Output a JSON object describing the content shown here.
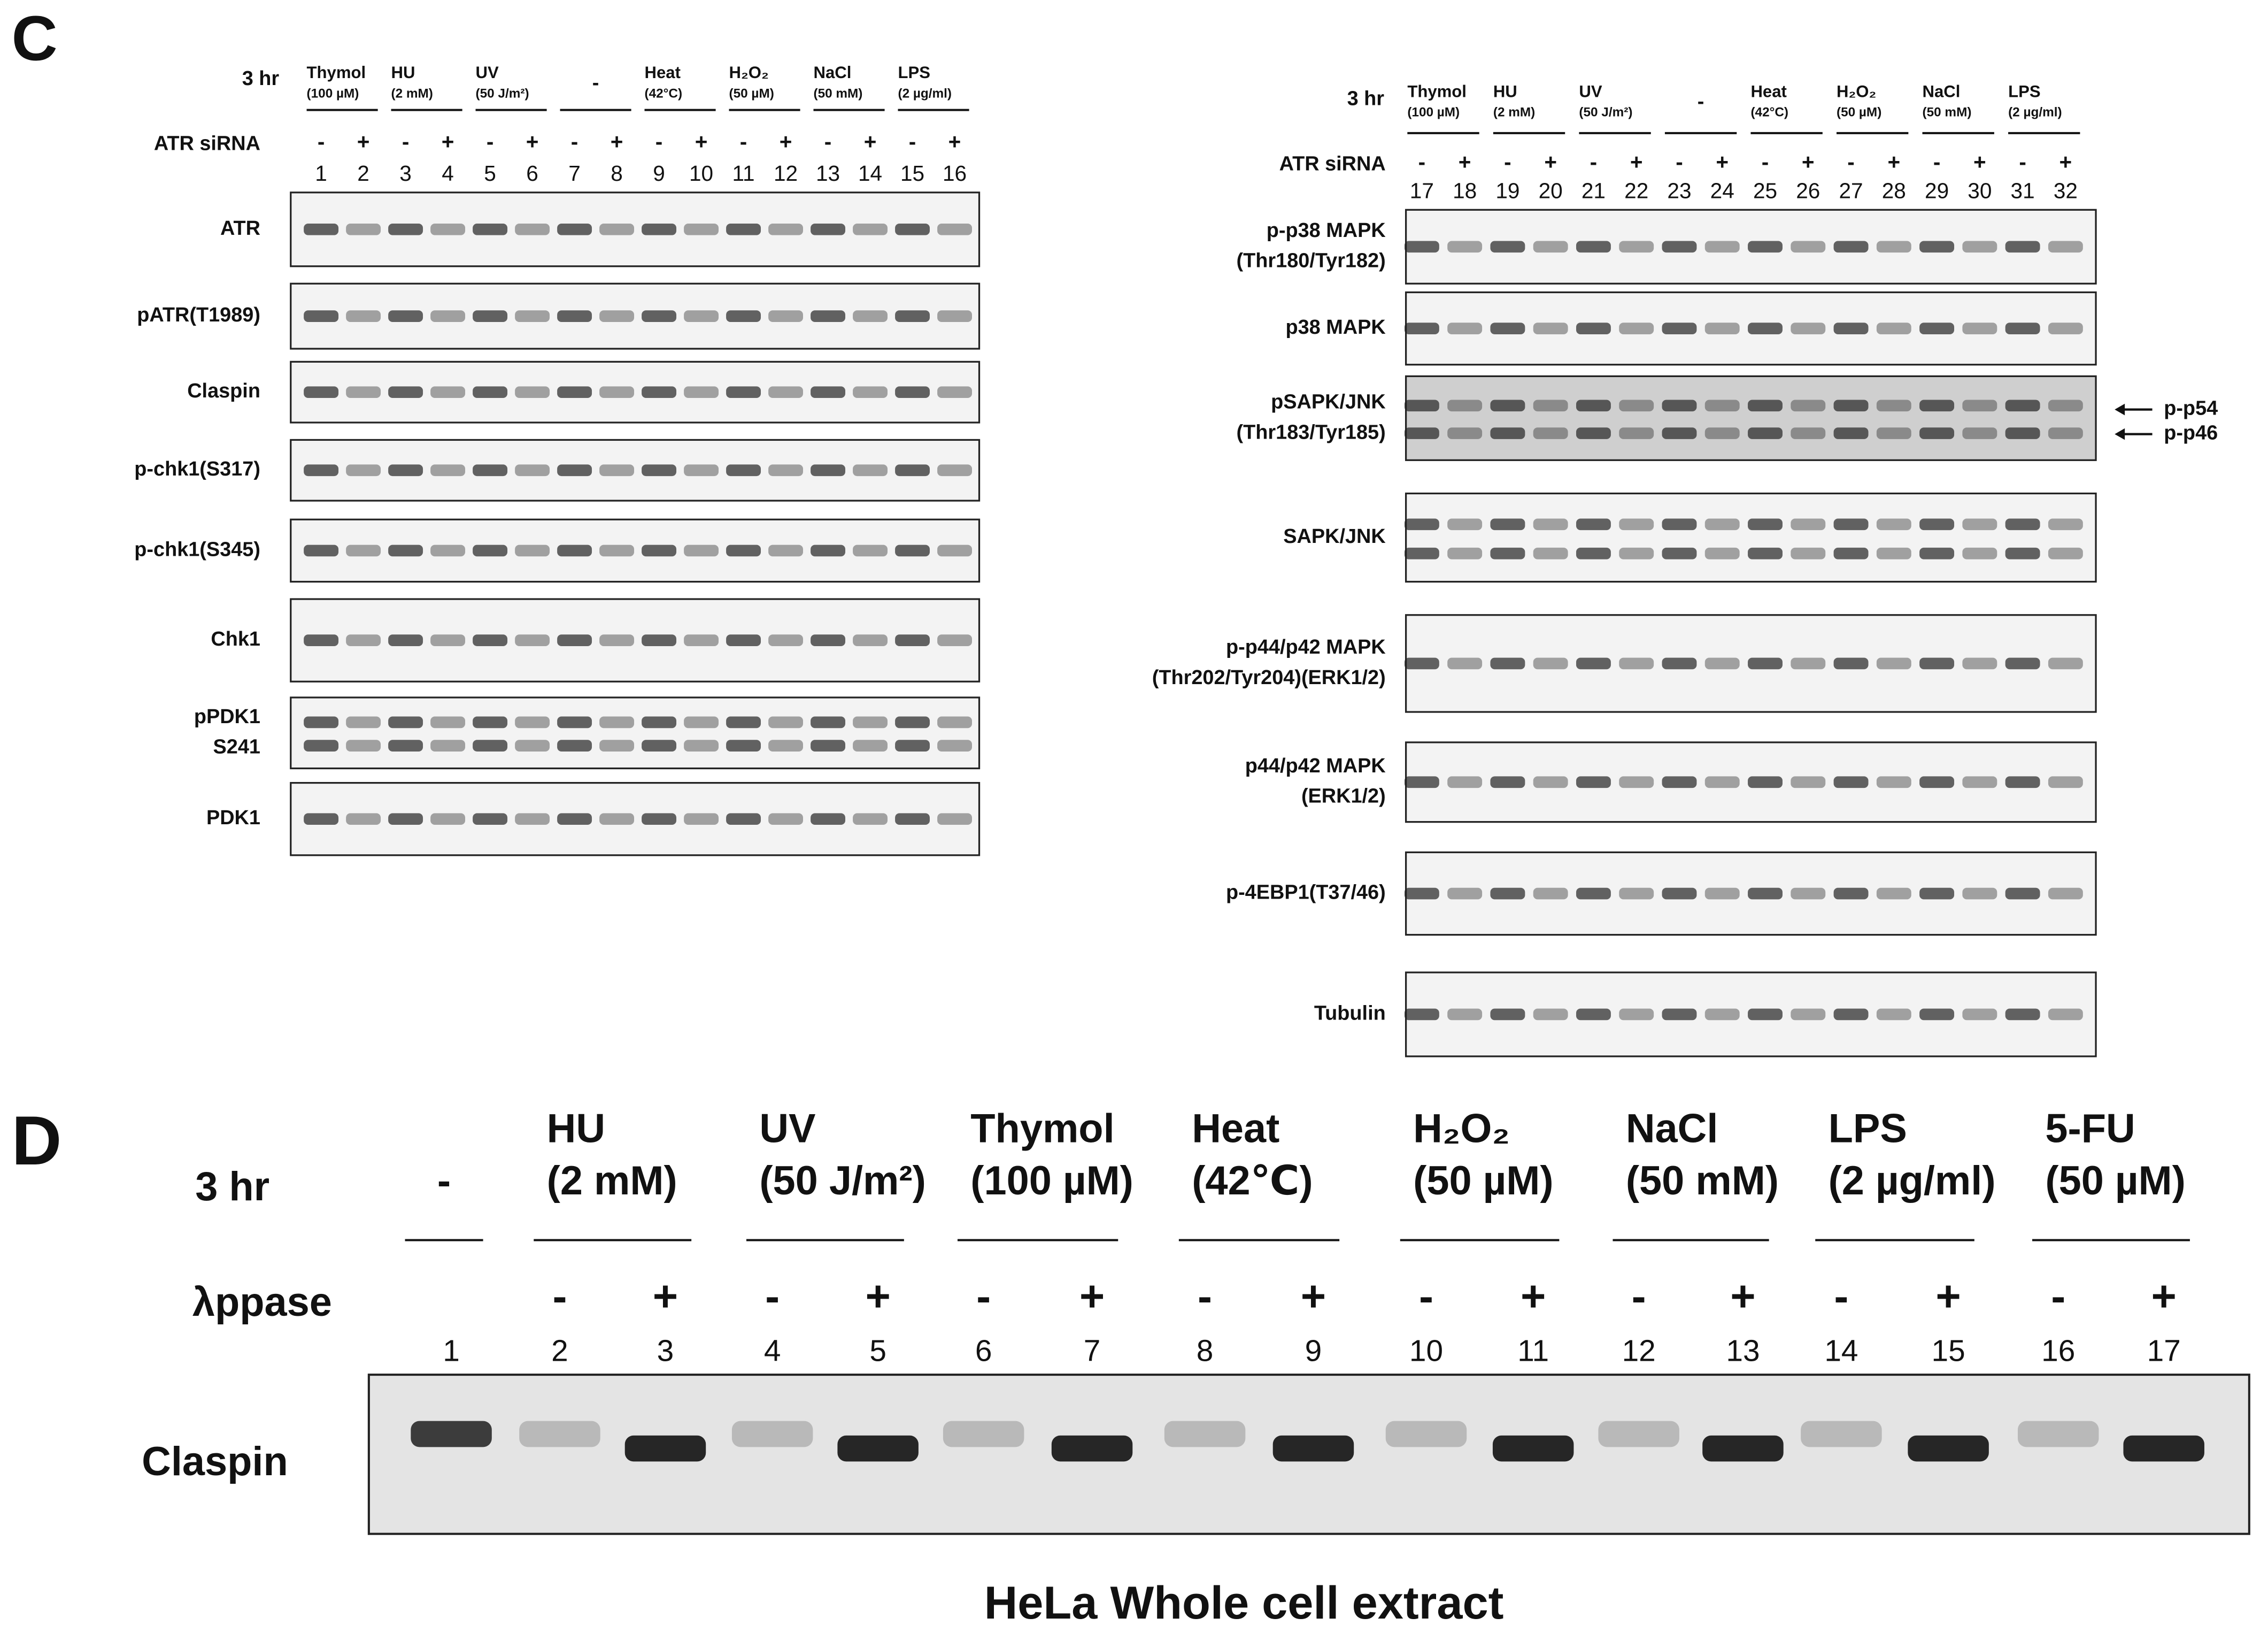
{
  "panel_c": {
    "label": "C",
    "left": {
      "time_label": "3 hr",
      "treatments": [
        {
          "name": "Thymol",
          "dose": "(100 µM)"
        },
        {
          "name": "HU",
          "dose": "(2 mM)"
        },
        {
          "name": "UV",
          "dose": "(50 J/m²)"
        },
        {
          "name": "-"
        },
        {
          "name": "Heat",
          "dose": "(42°C)"
        },
        {
          "name": "H₂O₂",
          "dose": "(50 µM)"
        },
        {
          "name": "NaCl",
          "dose": "(50 mM)"
        },
        {
          "name": "LPS",
          "dose": "(2 µg/ml)"
        }
      ],
      "sirna_label": "ATR siRNA",
      "signs": [
        "-",
        "+",
        "-",
        "+",
        "-",
        "+",
        "-",
        "+",
        "-",
        "+",
        "-",
        "+",
        "-",
        "+",
        "-",
        "+"
      ],
      "lanes": [
        "1",
        "2",
        "3",
        "4",
        "5",
        "6",
        "7",
        "8",
        "9",
        "10",
        "11",
        "12",
        "13",
        "14",
        "15",
        "16"
      ],
      "blots": [
        {
          "label": [
            "ATR"
          ]
        },
        {
          "label": [
            "pATR(T1989)"
          ]
        },
        {
          "label": [
            "Claspin"
          ]
        },
        {
          "label": [
            "p-chk1(S317)"
          ]
        },
        {
          "label": [
            "p-chk1(S345)"
          ]
        },
        {
          "label": [
            "Chk1"
          ]
        },
        {
          "label": [
            "pPDK1",
            "S241"
          ]
        },
        {
          "label": [
            "PDK1"
          ]
        }
      ]
    },
    "right": {
      "time_label": "3 hr",
      "treatments": [
        {
          "name": "Thymol",
          "dose": "(100 µM)"
        },
        {
          "name": "HU",
          "dose": "(2 mM)"
        },
        {
          "name": "UV",
          "dose": "(50 J/m²)"
        },
        {
          "name": "-"
        },
        {
          "name": "Heat",
          "dose": "(42°C)"
        },
        {
          "name": "H₂O₂",
          "dose": "(50 µM)"
        },
        {
          "name": "NaCl",
          "dose": "(50 mM)"
        },
        {
          "name": "LPS",
          "dose": "(2 µg/ml)"
        }
      ],
      "sirna_label": "ATR siRNA",
      "signs": [
        "-",
        "+",
        "-",
        "+",
        "-",
        "+",
        "-",
        "+",
        "-",
        "+",
        "-",
        "+",
        "-",
        "+",
        "-",
        "+"
      ],
      "lanes": [
        "17",
        "18",
        "19",
        "20",
        "21",
        "22",
        "23",
        "24",
        "25",
        "26",
        "27",
        "28",
        "29",
        "30",
        "31",
        "32"
      ],
      "blots": [
        {
          "label": [
            "p-p38 MAPK",
            "(Thr180/Tyr182)"
          ]
        },
        {
          "label": [
            "p38 MAPK"
          ]
        },
        {
          "label": [
            "pSAPK/JNK",
            "(Thr183/Tyr185)"
          ]
        },
        {
          "label": [
            "SAPK/JNK"
          ]
        },
        {
          "label": [
            "p-p44/p42 MAPK",
            "(Thr202/Tyr204)(ERK1/2)"
          ]
        },
        {
          "label": [
            "p44/p42 MAPK",
            "(ERK1/2)"
          ]
        },
        {
          "label": [
            "p-4EBP1(T37/46)"
          ]
        },
        {
          "label": [
            "Tubulin"
          ]
        }
      ],
      "arrows": [
        "p-p54",
        "p-p46"
      ]
    }
  },
  "panel_d": {
    "label": "D",
    "time_label": "3 hr",
    "treatments": [
      {
        "name": "-"
      },
      {
        "name": "HU",
        "dose": "(2 mM)"
      },
      {
        "name": "UV",
        "dose": "(50 J/m²)"
      },
      {
        "name": "Thymol",
        "dose": "(100 µM)"
      },
      {
        "name": "Heat",
        "dose": "(42℃)"
      },
      {
        "name": "H₂O₂",
        "dose": "(50 µM)"
      },
      {
        "name": "NaCl",
        "dose": "(50 mM)"
      },
      {
        "name": "LPS",
        "dose": "(2 µg/ml)"
      },
      {
        "name": "5-FU",
        "dose": "(50 µM)"
      }
    ],
    "ppase_label": "λppase",
    "signs": [
      "-",
      "+",
      "-",
      "+",
      "-",
      "+",
      "-",
      "+",
      "-",
      "+",
      "-",
      "+",
      "-",
      "+",
      "-",
      "+"
    ],
    "lanes": [
      "1",
      "2",
      "3",
      "4",
      "5",
      "6",
      "7",
      "8",
      "9",
      "10",
      "11",
      "12",
      "13",
      "14",
      "15",
      "16",
      "17"
    ],
    "blot_label": "Claspin",
    "caption": "HeLa  Whole cell extract"
  }
}
